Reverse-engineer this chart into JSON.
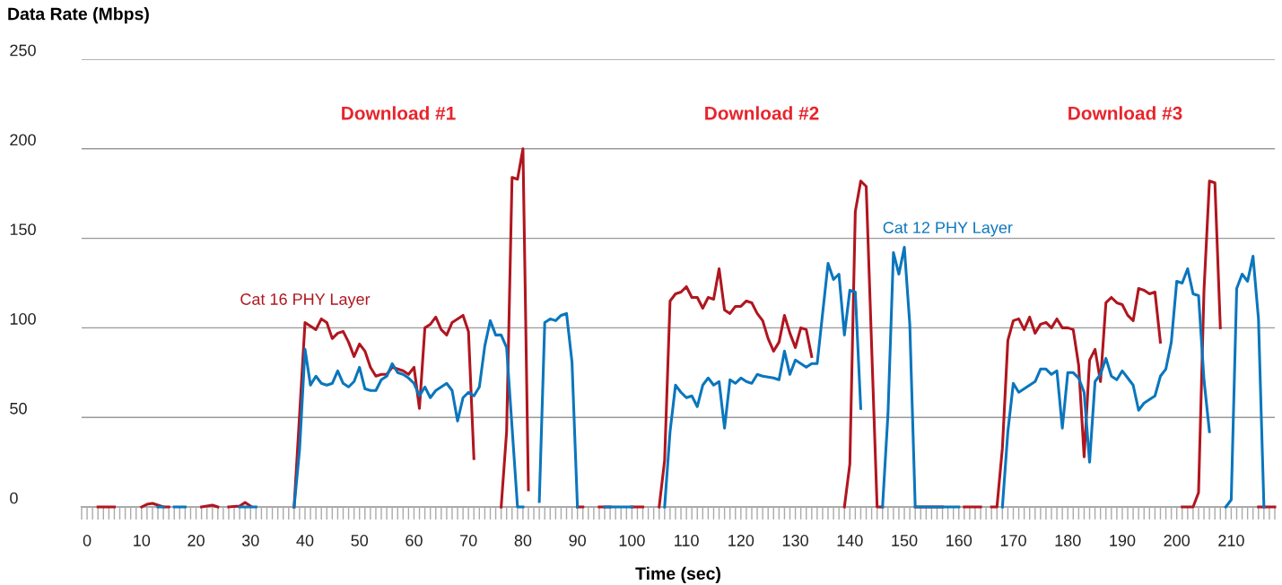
{
  "chart_data": {
    "type": "line",
    "xlabel": "Time (sec)",
    "ylabel": "Data Rate (Mbps)",
    "xlim": [
      -1,
      218
    ],
    "xticks": [
      0,
      10,
      20,
      30,
      40,
      50,
      60,
      70,
      80,
      90,
      100,
      110,
      120,
      130,
      140,
      150,
      160,
      170,
      180,
      190,
      200,
      210
    ],
    "ylim": [
      0,
      250
    ],
    "yticks": [
      0,
      50,
      100,
      150,
      200,
      250
    ],
    "grid": "y",
    "series": [
      {
        "name": "Cat 16 PHY Layer",
        "color": "#b0161f",
        "x": [
          2,
          5,
          6,
          10,
          11,
          12,
          13,
          14,
          15,
          16,
          21,
          23,
          24,
          25,
          26,
          28,
          29,
          30,
          31,
          38,
          40,
          41,
          42,
          43,
          44,
          45,
          46,
          47,
          48,
          49,
          50,
          51,
          52,
          53,
          54,
          55,
          56,
          57,
          58,
          59,
          60,
          61,
          62,
          63,
          64,
          65,
          66,
          67,
          68,
          69,
          70,
          71,
          72,
          76,
          77,
          78,
          79,
          80,
          81,
          82,
          90,
          91,
          92,
          94,
          96,
          97,
          100,
          102,
          103,
          105,
          106,
          107,
          108,
          109,
          110,
          111,
          112,
          113,
          114,
          115,
          116,
          117,
          118,
          119,
          120,
          121,
          122,
          123,
          124,
          125,
          126,
          127,
          128,
          129,
          130,
          131,
          132,
          133,
          134,
          139,
          140,
          141,
          142,
          143,
          145,
          146,
          147,
          152,
          157,
          158,
          161,
          164,
          165,
          166,
          167,
          168,
          169,
          170,
          171,
          172,
          173,
          174,
          175,
          176,
          177,
          178,
          179,
          180,
          181,
          182,
          183,
          184,
          185,
          186,
          187,
          188,
          189,
          190,
          191,
          192,
          193,
          194,
          195,
          196,
          197,
          198,
          201,
          203,
          204,
          205,
          206,
          207,
          208,
          209,
          215,
          218
        ],
        "values": [
          0,
          0,
          null,
          0,
          1.5,
          2,
          1,
          0,
          0,
          null,
          0,
          1,
          0,
          null,
          0,
          0.5,
          2.5,
          0.5,
          null,
          0,
          103,
          101,
          99,
          105,
          103,
          94,
          97,
          98,
          92,
          84,
          91,
          87,
          78,
          73,
          74,
          74,
          78,
          77,
          76,
          74,
          78,
          55,
          100,
          102,
          106,
          99,
          96,
          103,
          105,
          107,
          98,
          27,
          null,
          0,
          42,
          184,
          183,
          200,
          9.5,
          null,
          0,
          0,
          null,
          0,
          0,
          null,
          0,
          0,
          null,
          0,
          26,
          115,
          119,
          120,
          123,
          117,
          117,
          111,
          117,
          116,
          133,
          110,
          108,
          112,
          112,
          115,
          114,
          108,
          104,
          94,
          87,
          92,
          107,
          97,
          89,
          100,
          99,
          84,
          null,
          0,
          24,
          165,
          182,
          179,
          0,
          0,
          null,
          0,
          0,
          null,
          0,
          0,
          null,
          0,
          0,
          33,
          93,
          104,
          105,
          99,
          106,
          97,
          102,
          103,
          100,
          105,
          100,
          100,
          99,
          79,
          28,
          82,
          88,
          70,
          114,
          117,
          114,
          113,
          107,
          104,
          122,
          121,
          119,
          120,
          92,
          null,
          0,
          0,
          8,
          121,
          182,
          181,
          100,
          null,
          0,
          0
        ]
      },
      {
        "name": "Cat 12 PHY Layer",
        "color": "#0a76bd",
        "x": [
          13,
          14,
          15,
          16,
          18,
          19,
          28,
          31,
          32,
          38,
          39,
          40,
          41,
          42,
          43,
          44,
          45,
          46,
          47,
          48,
          49,
          50,
          51,
          52,
          53,
          54,
          55,
          56,
          57,
          58,
          59,
          60,
          61,
          62,
          63,
          64,
          65,
          66,
          67,
          68,
          69,
          70,
          71,
          72,
          73,
          74,
          75,
          76,
          77,
          79,
          80,
          81,
          83,
          84,
          85,
          86,
          87,
          88,
          89,
          90,
          91,
          95,
          100,
          101,
          106,
          107,
          108,
          109,
          110,
          111,
          112,
          113,
          114,
          115,
          116,
          117,
          118,
          119,
          120,
          121,
          122,
          123,
          124,
          126,
          127,
          128,
          129,
          130,
          131,
          132,
          133,
          134,
          135,
          136,
          137,
          138,
          139,
          140,
          141,
          142,
          143,
          146,
          147,
          148,
          149,
          150,
          151,
          152,
          160,
          161,
          168,
          169,
          170,
          171,
          172,
          173,
          174,
          175,
          176,
          177,
          178,
          179,
          180,
          181,
          182,
          183,
          184,
          185,
          186,
          187,
          188,
          189,
          190,
          191,
          192,
          193,
          194,
          195,
          196,
          197,
          198,
          199,
          200,
          201,
          202,
          203,
          204,
          205,
          206,
          207,
          209,
          210,
          211,
          212,
          213,
          214,
          215,
          216
        ],
        "values": [
          0,
          0,
          null,
          0,
          0,
          null,
          0,
          0,
          null,
          0,
          32,
          88,
          68,
          73,
          69,
          68,
          69,
          76,
          69,
          67,
          70,
          78,
          66,
          65,
          65,
          71,
          73,
          80,
          75,
          74,
          72,
          69,
          62,
          67,
          61,
          65,
          67,
          69,
          65,
          48,
          61,
          64,
          62,
          67,
          90,
          104,
          96,
          96,
          89,
          0,
          0,
          null,
          3,
          103,
          105,
          104,
          107,
          108,
          81,
          0,
          null,
          0,
          0,
          null,
          0,
          42,
          68,
          64,
          61,
          62,
          56,
          68,
          72,
          68,
          70,
          44,
          71,
          69,
          72,
          70,
          69,
          74,
          73,
          72,
          71,
          87,
          74,
          82,
          80,
          78,
          80,
          80,
          108,
          136,
          127,
          130,
          96,
          121,
          120,
          55,
          null,
          0,
          52,
          142,
          130,
          145,
          102,
          0,
          0,
          null,
          0,
          42,
          69,
          64,
          66,
          68,
          70,
          77,
          77,
          74,
          76,
          44,
          75,
          75,
          72,
          64,
          25,
          70,
          74,
          83,
          73,
          71,
          76,
          72,
          68,
          54,
          58,
          60,
          62,
          73,
          77,
          92,
          126,
          125,
          133,
          119,
          118,
          71,
          42,
          null,
          0,
          4,
          122,
          130,
          126,
          140,
          105,
          0
        ]
      }
    ],
    "annotations": [
      "Download #1",
      "Download #2",
      "Download #3"
    ]
  }
}
